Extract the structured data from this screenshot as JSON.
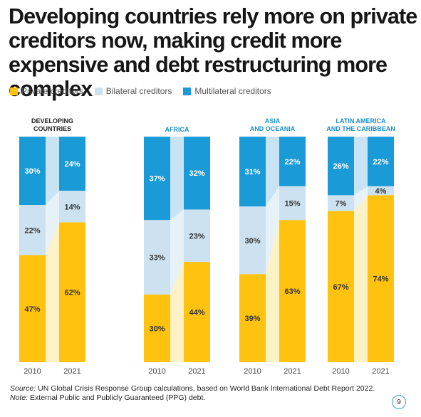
{
  "title": "Developing countries rely more on private creditors now, making credit more expensive and debt restructuring more complex",
  "legend": [
    {
      "label": "Private creditors",
      "color": "#ffc20e"
    },
    {
      "label": "Bilateral creditors",
      "color": "#cde2f1"
    },
    {
      "label": "Multilateral creditors",
      "color": "#1a9ad6"
    }
  ],
  "chart_data": {
    "type": "bar",
    "stacked": true,
    "percent_stacked": true,
    "years": [
      "2010",
      "2021"
    ],
    "groups": [
      {
        "title": [
          "DEVELOPING",
          "COUNTRIES"
        ],
        "accent": false,
        "private": [
          47,
          62
        ],
        "bilateral": [
          22,
          14
        ],
        "multilateral": [
          30,
          24
        ]
      },
      {
        "title": [
          "AFRICA"
        ],
        "accent": true,
        "private": [
          30,
          44
        ],
        "bilateral": [
          33,
          23
        ],
        "multilateral": [
          37,
          32
        ]
      },
      {
        "title": [
          "ASIA",
          "AND OCEANIA"
        ],
        "accent": true,
        "private": [
          39,
          63
        ],
        "bilateral": [
          30,
          15
        ],
        "multilateral": [
          31,
          22
        ]
      },
      {
        "title": [
          "LATIN AMERICA",
          "AND THE CARIBBEAN"
        ],
        "accent": true,
        "private": [
          67,
          74
        ],
        "bilateral": [
          7,
          4
        ],
        "multilateral": [
          26,
          22
        ]
      }
    ]
  },
  "footer": {
    "source_label": "Source:",
    "source_text": " UN Global Crisis Response Group calculations, based on World Bank International Debt Report 2022.",
    "note_label": "Note:",
    "note_text": " External Public and Publicly Guaranteed (PPG) debt."
  },
  "page_number": "9"
}
